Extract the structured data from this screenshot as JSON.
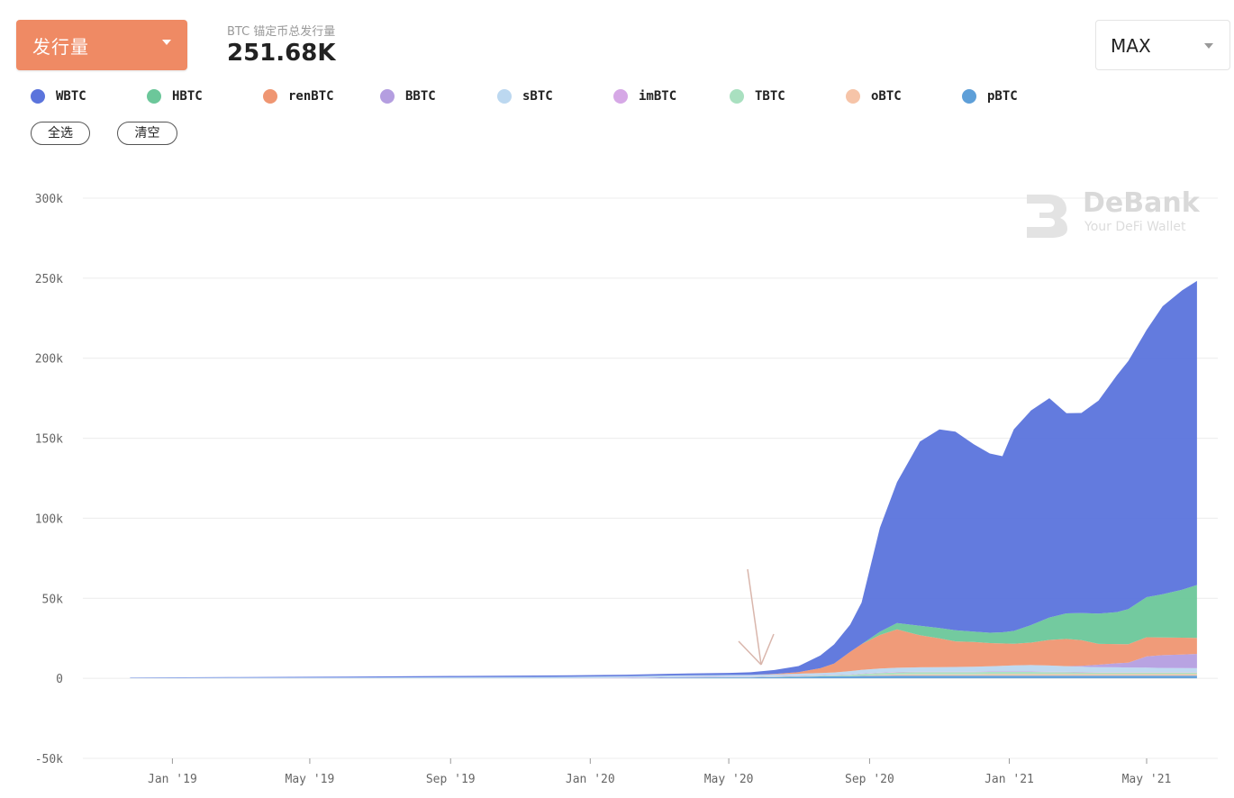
{
  "header": {
    "metric_select": "发行量",
    "summary_label": "BTC 锚定币总发行量",
    "summary_value": "251.68K",
    "range_select": "MAX"
  },
  "legend": {
    "items": [
      {
        "label": "WBTC",
        "color": "#5b74dc"
      },
      {
        "label": "HBTC",
        "color": "#6cc79a"
      },
      {
        "label": "renBTC",
        "color": "#ef9672"
      },
      {
        "label": "BBTC",
        "color": "#b49ee0"
      },
      {
        "label": "sBTC",
        "color": "#bcd8f0"
      },
      {
        "label": "imBTC",
        "color": "#d6a8e6"
      },
      {
        "label": "TBTC",
        "color": "#a9e0c0"
      },
      {
        "label": "oBTC",
        "color": "#f6c4a8"
      },
      {
        "label": "pBTC",
        "color": "#5e9fd8"
      }
    ],
    "select_all": "全选",
    "clear": "清空"
  },
  "watermark": {
    "title": "DeBank",
    "subtitle": "Your DeFi Wallet"
  },
  "chart_data": {
    "type": "area",
    "stacked": true,
    "grid": true,
    "ylim": [
      -50000,
      300000
    ],
    "y_ticks": [
      "300k",
      "250k",
      "200k",
      "150k",
      "100k",
      "50k",
      "0",
      "-50k"
    ],
    "y_tick_values": [
      300000,
      250000,
      200000,
      150000,
      100000,
      50000,
      0,
      -50000
    ],
    "x_ticks": [
      "Jan '19",
      "May '19",
      "Sep '19",
      "Jan '20",
      "May '20",
      "Sep '20",
      "Jan '21",
      "May '21"
    ],
    "x_tick_dates": [
      "2019-01-01",
      "2019-05-01",
      "2019-09-01",
      "2020-01-01",
      "2020-05-01",
      "2020-09-01",
      "2021-01-01",
      "2021-05-01"
    ],
    "x": [
      "2018-11-25",
      "2019-03-01",
      "2019-06-01",
      "2019-09-01",
      "2019-12-01",
      "2020-02-01",
      "2020-03-15",
      "2020-05-01",
      "2020-05-20",
      "2020-06-10",
      "2020-07-01",
      "2020-07-20",
      "2020-08-01",
      "2020-08-15",
      "2020-08-25",
      "2020-09-10",
      "2020-09-25",
      "2020-10-15",
      "2020-11-01",
      "2020-11-15",
      "2020-12-01",
      "2020-12-15",
      "2020-12-26",
      "2021-01-05",
      "2021-01-20",
      "2021-02-05",
      "2021-02-20",
      "2021-03-05",
      "2021-03-20",
      "2021-04-05",
      "2021-04-15",
      "2021-05-01",
      "2021-05-15",
      "2021-06-01",
      "2021-06-14"
    ],
    "series": [
      {
        "name": "pBTC",
        "values": [
          0,
          0,
          0,
          0,
          0,
          0,
          500,
          600,
          600,
          800,
          1000,
          1200,
          1300,
          1400,
          1500,
          1600,
          1700,
          1700,
          1700,
          1700,
          1700,
          1700,
          1700,
          1700,
          1700,
          1700,
          1700,
          1700,
          1700,
          1700,
          1700,
          1700,
          1700,
          1700,
          1700
        ]
      },
      {
        "name": "oBTC",
        "values": [
          0,
          0,
          0,
          0,
          0,
          0,
          0,
          0,
          0,
          0,
          0,
          0,
          0,
          0,
          200,
          500,
          700,
          800,
          800,
          800,
          800,
          900,
          900,
          900,
          900,
          900,
          900,
          900,
          900,
          900,
          900,
          900,
          900,
          900,
          900
        ]
      },
      {
        "name": "TBTC",
        "values": [
          0,
          0,
          0,
          0,
          0,
          0,
          0,
          100,
          200,
          300,
          400,
          500,
          600,
          800,
          1000,
          1200,
          1300,
          1400,
          1400,
          1400,
          1400,
          1400,
          1400,
          1400,
          1400,
          1300,
          1200,
          1100,
          1000,
          1000,
          1000,
          1000,
          1000,
          1000,
          1000
        ]
      },
      {
        "name": "imBTC",
        "values": [
          0,
          0,
          0,
          0,
          0,
          300,
          300,
          300,
          300,
          300,
          300,
          300,
          300,
          300,
          300,
          300,
          300,
          300,
          300,
          300,
          300,
          300,
          300,
          300,
          300,
          300,
          300,
          300,
          300,
          300,
          300,
          300,
          300,
          300,
          300
        ]
      },
      {
        "name": "sBTC",
        "values": [
          300,
          400,
          500,
          700,
          900,
          1000,
          1000,
          1100,
          1100,
          1100,
          1200,
          1300,
          1500,
          2000,
          2300,
          2500,
          2600,
          2700,
          2800,
          2900,
          3000,
          3200,
          3500,
          3800,
          4000,
          3800,
          3500,
          3300,
          3100,
          3000,
          2900,
          2800,
          2600,
          2500,
          2400
        ]
      },
      {
        "name": "BBTC",
        "values": [
          0,
          0,
          0,
          0,
          0,
          0,
          0,
          0,
          0,
          0,
          0,
          0,
          0,
          0,
          0,
          0,
          0,
          0,
          0,
          0,
          0,
          0,
          0,
          0,
          0,
          0,
          0,
          500,
          1500,
          2500,
          3000,
          7000,
          8000,
          8500,
          9000
        ]
      },
      {
        "name": "renBTC",
        "values": [
          0,
          0,
          0,
          0,
          0,
          0,
          0,
          0,
          0,
          200,
          1000,
          3000,
          5500,
          12000,
          16000,
          21000,
          24000,
          20000,
          18000,
          16000,
          15500,
          14500,
          14000,
          13500,
          14000,
          16000,
          17000,
          16000,
          13000,
          12000,
          11500,
          12000,
          11000,
          10500,
          10000
        ]
      },
      {
        "name": "HBTC",
        "values": [
          0,
          0,
          0,
          0,
          0,
          0,
          0,
          0,
          0,
          0,
          0,
          0,
          0,
          0,
          0,
          2000,
          4000,
          6000,
          6500,
          7000,
          6500,
          6500,
          7000,
          8000,
          11000,
          14000,
          16000,
          17000,
          19000,
          20000,
          22000,
          25000,
          27000,
          30000,
          33000
        ]
      },
      {
        "name": "WBTC",
        "values": [
          200,
          400,
          600,
          800,
          900,
          1000,
          1100,
          1300,
          1600,
          2500,
          3800,
          8000,
          12000,
          17000,
          26000,
          65000,
          88000,
          115000,
          124000,
          124000,
          117000,
          112000,
          110000,
          126000,
          134000,
          137000,
          125000,
          125000,
          133000,
          148000,
          155000,
          167000,
          180000,
          187000,
          190000
        ]
      }
    ]
  }
}
